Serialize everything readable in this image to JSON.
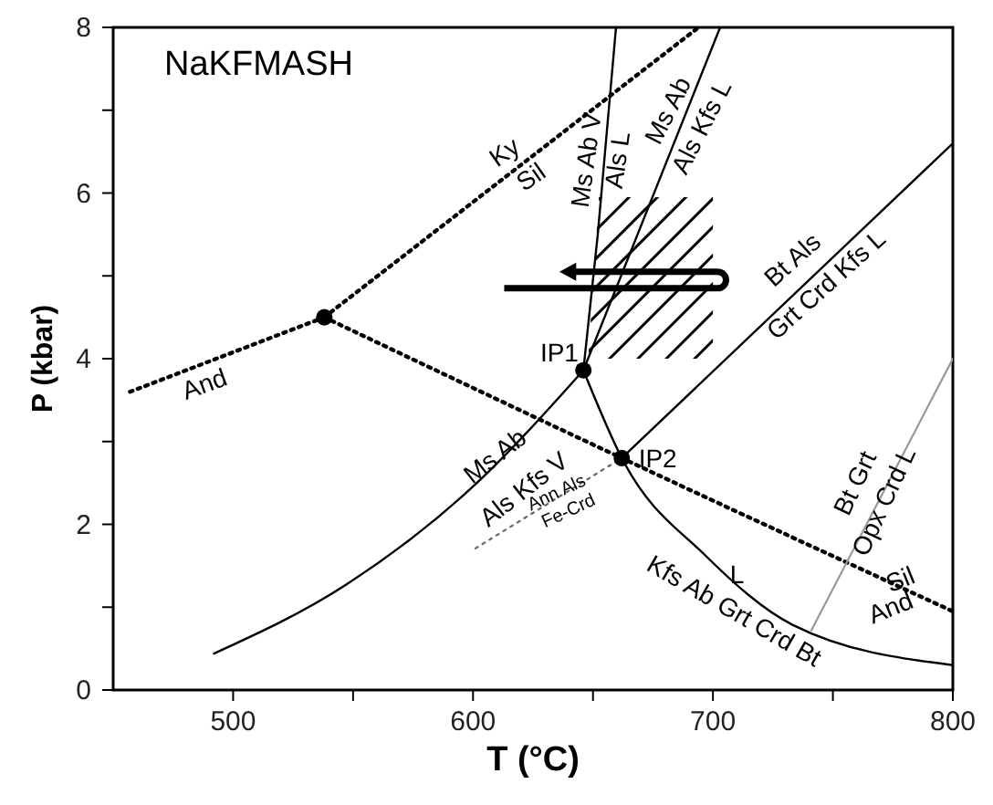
{
  "chart_data": {
    "type": "line",
    "title": "NaKFMASH",
    "xlabel": "T (°C)",
    "ylabel": "P (kbar)",
    "xlim": [
      450,
      800
    ],
    "ylim": [
      0,
      8
    ],
    "xticks": [
      500,
      {
        "value": 550,
        "label": null
      },
      600,
      {
        "value": 650,
        "label": null
      },
      700,
      {
        "value": 750,
        "label": null
      },
      800
    ],
    "yticks": [
      0,
      {
        "value": 1,
        "label": null
      },
      2,
      {
        "value": 3,
        "label": null
      },
      4,
      {
        "value": 5,
        "label": null
      },
      6,
      {
        "value": 7,
        "label": null
      },
      8
    ],
    "grid": false,
    "series": [
      {
        "type": "line",
        "line_style": "dotted",
        "color": "#000000",
        "x": [
          457,
          538
        ],
        "values": [
          3.6,
          4.5
        ]
      },
      {
        "type": "line",
        "line_style": "dotted",
        "color": "#000000",
        "x": [
          538,
          694
        ],
        "values": [
          4.5,
          8
        ]
      },
      {
        "type": "line",
        "line_style": "dotted",
        "color": "#000000",
        "x": [
          538,
          662,
          800
        ],
        "values": [
          4.5,
          2.8,
          0.95
        ]
      },
      {
        "type": "line",
        "line_style": "solid",
        "color": "#000000",
        "x": [
          492,
          547,
          599,
          646
        ],
        "values": [
          0.44,
          1.27,
          2.43,
          3.86
        ]
      },
      {
        "type": "line",
        "line_style": "solid",
        "color": "#000000",
        "x": [
          646,
          652,
          659.6
        ],
        "values": [
          3.86,
          5.5,
          8
        ]
      },
      {
        "type": "line",
        "line_style": "solid",
        "color": "#000000",
        "x": [
          646,
          703
        ],
        "values": [
          3.86,
          8
        ]
      },
      {
        "type": "line",
        "line_style": "solid",
        "color": "#000000",
        "x": [
          662,
          800
        ],
        "values": [
          2.8,
          6.6
        ]
      },
      {
        "type": "line",
        "line_style": "solid",
        "color": "#000000",
        "x": [
          646,
          662,
          697,
          733,
          800
        ],
        "values": [
          3.86,
          2.8,
          1.62,
          0.79,
          0.3
        ]
      },
      {
        "type": "line",
        "line_style": "dotted",
        "color": "#666666",
        "x": [
          601,
          662
        ],
        "values": [
          1.71,
          2.8
        ]
      },
      {
        "type": "line",
        "line_style": "solid",
        "color": "#999999",
        "x": [
          741,
          800
        ],
        "values": [
          0.72,
          4.0
        ]
      },
      {
        "type": "scatter",
        "marker": "circle",
        "color": "#000000",
        "x": [
          538,
          646,
          662
        ],
        "values": [
          4.5,
          3.86,
          2.8
        ]
      }
    ],
    "annotations": [
      "Ky",
      "Sil",
      "And",
      "Ms Ab V",
      "Als L",
      "Ms Ab",
      "Als Kfs L",
      "Bt Als",
      "Grt Crd Kfs L",
      "IP1",
      "IP2",
      "Ms Ab",
      "Als Kfs V",
      "Ann Als",
      "Fe-Crd",
      "L",
      "Kfs Ab Grt Crd Bt",
      "Bt Grt",
      "Opx Crd L",
      "Sil",
      "And"
    ]
  }
}
